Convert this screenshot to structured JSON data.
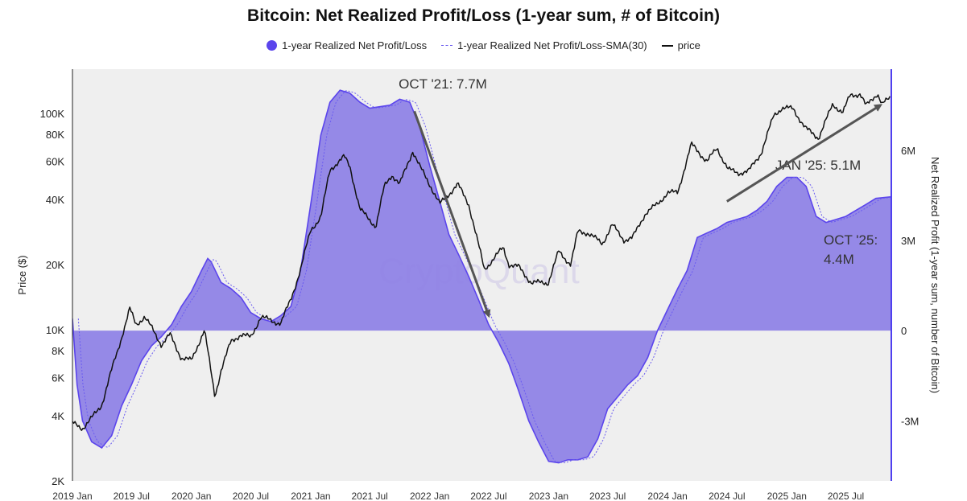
{
  "title": "Bitcoin: Net Realized Profit/Loss (1-year sum, # of Bitcoin)",
  "watermark": "CryptoQuant",
  "colors": {
    "area": "#5b45ec",
    "area_fill": "#8f83e6",
    "sma": "#6b5cf0",
    "price": "#111111",
    "plot_bg": "#efefef",
    "right_axis": "#4f3ff0"
  },
  "chart_data": {
    "type": "area",
    "title": "Bitcoin: Net Realized Profit/Loss (1-year sum, # of Bitcoin)",
    "legend_position": "top",
    "grid": false,
    "x_ticks": [
      "2019 Jan",
      "2019 Jul",
      "2020 Jan",
      "2020 Jul",
      "2021 Jan",
      "2021 Jul",
      "2022 Jan",
      "2022 Jul",
      "2023 Jan",
      "2023 Jul",
      "2024 Jan",
      "2024 Jul",
      "2025 Jan",
      "2025 Jul"
    ],
    "xlim": [
      "2019-01-01",
      "2025-11-15"
    ],
    "y_left": {
      "label": "Price ($)",
      "scale": "log",
      "ylim": [
        2000,
        160000
      ],
      "ticks": [
        2000,
        4000,
        6000,
        8000,
        10000,
        20000,
        40000,
        60000,
        80000,
        100000
      ],
      "tick_labels": [
        "2K",
        "4K",
        "6K",
        "8K",
        "10K",
        "20K",
        "40K",
        "60K",
        "80K",
        "100K"
      ]
    },
    "y_right": {
      "label": "Net Realized Profit (1-year sum, number of Bitcoin)",
      "ylim": [
        -5000000,
        8700000
      ],
      "ticks": [
        -3000000,
        0,
        3000000,
        6000000
      ],
      "tick_labels": [
        "-3M",
        "0",
        "3M",
        "6M"
      ]
    },
    "series": [
      {
        "name": "1-year Realized Net Profit/Loss",
        "axis": "right",
        "points": [
          [
            "2019-01-01",
            400000
          ],
          [
            "2019-01-15",
            -1800000
          ],
          [
            "2019-02-01",
            -3000000
          ],
          [
            "2019-03-01",
            -3700000
          ],
          [
            "2019-04-01",
            -3900000
          ],
          [
            "2019-05-01",
            -3500000
          ],
          [
            "2019-06-01",
            -2500000
          ],
          [
            "2019-07-01",
            -1800000
          ],
          [
            "2019-08-01",
            -1000000
          ],
          [
            "2019-09-01",
            -500000
          ],
          [
            "2019-10-01",
            -200000
          ],
          [
            "2019-11-01",
            200000
          ],
          [
            "2019-12-01",
            800000
          ],
          [
            "2020-01-01",
            1300000
          ],
          [
            "2020-02-01",
            2000000
          ],
          [
            "2020-02-20",
            2400000
          ],
          [
            "2020-03-01",
            2300000
          ],
          [
            "2020-04-01",
            1600000
          ],
          [
            "2020-05-01",
            1400000
          ],
          [
            "2020-06-01",
            1100000
          ],
          [
            "2020-07-01",
            600000
          ],
          [
            "2020-08-01",
            400000
          ],
          [
            "2020-09-01",
            300000
          ],
          [
            "2020-10-01",
            500000
          ],
          [
            "2020-11-01",
            800000
          ],
          [
            "2020-12-01",
            2000000
          ],
          [
            "2021-01-01",
            4200000
          ],
          [
            "2021-02-01",
            6500000
          ],
          [
            "2021-03-01",
            7600000
          ],
          [
            "2021-04-01",
            8000000
          ],
          [
            "2021-05-01",
            7900000
          ],
          [
            "2021-06-01",
            7600000
          ],
          [
            "2021-07-01",
            7400000
          ],
          [
            "2021-08-01",
            7450000
          ],
          [
            "2021-09-01",
            7500000
          ],
          [
            "2021-10-01",
            7700000
          ],
          [
            "2021-11-01",
            7600000
          ],
          [
            "2021-12-01",
            6800000
          ],
          [
            "2022-01-01",
            5500000
          ],
          [
            "2022-02-01",
            4300000
          ],
          [
            "2022-03-01",
            3200000
          ],
          [
            "2022-04-01",
            2500000
          ],
          [
            "2022-05-01",
            1800000
          ],
          [
            "2022-06-01",
            1000000
          ],
          [
            "2022-07-01",
            200000
          ],
          [
            "2022-08-01",
            -400000
          ],
          [
            "2022-09-01",
            -1100000
          ],
          [
            "2022-10-01",
            -2000000
          ],
          [
            "2022-11-01",
            -3000000
          ],
          [
            "2022-12-01",
            -3700000
          ],
          [
            "2023-01-01",
            -4350000
          ],
          [
            "2023-02-01",
            -4400000
          ],
          [
            "2023-03-01",
            -4300000
          ],
          [
            "2023-04-01",
            -4300000
          ],
          [
            "2023-05-01",
            -4200000
          ],
          [
            "2023-06-01",
            -3600000
          ],
          [
            "2023-07-01",
            -2600000
          ],
          [
            "2023-08-01",
            -2200000
          ],
          [
            "2023-09-01",
            -1800000
          ],
          [
            "2023-10-01",
            -1500000
          ],
          [
            "2023-11-01",
            -900000
          ],
          [
            "2023-12-01",
            0
          ],
          [
            "2024-01-01",
            700000
          ],
          [
            "2024-02-01",
            1400000
          ],
          [
            "2024-03-01",
            2000000
          ],
          [
            "2024-04-01",
            3100000
          ],
          [
            "2024-05-01",
            3250000
          ],
          [
            "2024-06-01",
            3400000
          ],
          [
            "2024-07-01",
            3600000
          ],
          [
            "2024-08-01",
            3700000
          ],
          [
            "2024-09-01",
            3800000
          ],
          [
            "2024-10-01",
            4000000
          ],
          [
            "2024-11-01",
            4300000
          ],
          [
            "2024-12-01",
            4800000
          ],
          [
            "2025-01-01",
            5100000
          ],
          [
            "2025-02-01",
            5100000
          ],
          [
            "2025-03-01",
            4800000
          ],
          [
            "2025-04-01",
            3800000
          ],
          [
            "2025-05-01",
            3600000
          ],
          [
            "2025-06-01",
            3700000
          ],
          [
            "2025-07-01",
            3800000
          ],
          [
            "2025-08-01",
            4000000
          ],
          [
            "2025-09-01",
            4200000
          ],
          [
            "2025-10-01",
            4400000
          ],
          [
            "2025-11-15",
            4450000
          ]
        ]
      },
      {
        "name": "1-year Realized Net Profit/Loss-SMA(30)",
        "axis": "right",
        "derived": "30-day moving average of the net realized profit/loss series"
      },
      {
        "name": "price",
        "axis": "left",
        "points": [
          [
            "2019-01-01",
            3700
          ],
          [
            "2019-02-01",
            3500
          ],
          [
            "2019-03-01",
            3900
          ],
          [
            "2019-04-01",
            4500
          ],
          [
            "2019-05-01",
            6500
          ],
          [
            "2019-05-25",
            8500
          ],
          [
            "2019-06-26",
            12500
          ],
          [
            "2019-07-15",
            10500
          ],
          [
            "2019-08-10",
            11500
          ],
          [
            "2019-09-01",
            10200
          ],
          [
            "2019-10-01",
            8500
          ],
          [
            "2019-10-27",
            9500
          ],
          [
            "2019-12-01",
            7400
          ],
          [
            "2020-01-01",
            7200
          ],
          [
            "2020-02-10",
            10000
          ],
          [
            "2020-03-13",
            4900
          ],
          [
            "2020-04-01",
            6500
          ],
          [
            "2020-05-01",
            8800
          ],
          [
            "2020-06-01",
            9500
          ],
          [
            "2020-07-01",
            9200
          ],
          [
            "2020-08-01",
            11500
          ],
          [
            "2020-09-01",
            11000
          ],
          [
            "2020-10-01",
            10700
          ],
          [
            "2020-11-01",
            13800
          ],
          [
            "2020-12-01",
            19000
          ],
          [
            "2021-01-01",
            29000
          ],
          [
            "2021-02-01",
            33000
          ],
          [
            "2021-03-01",
            55000
          ],
          [
            "2021-04-14",
            63000
          ],
          [
            "2021-05-01",
            57000
          ],
          [
            "2021-06-01",
            36000
          ],
          [
            "2021-07-20",
            30000
          ],
          [
            "2021-08-15",
            46000
          ],
          [
            "2021-09-07",
            52000
          ],
          [
            "2021-10-01",
            47000
          ],
          [
            "2021-11-10",
            67000
          ],
          [
            "2021-12-01",
            57000
          ],
          [
            "2022-01-01",
            47000
          ],
          [
            "2022-02-01",
            38000
          ],
          [
            "2022-03-28",
            47000
          ],
          [
            "2022-05-01",
            38000
          ],
          [
            "2022-06-18",
            19000
          ],
          [
            "2022-07-01",
            20000
          ],
          [
            "2022-08-15",
            24000
          ],
          [
            "2022-09-01",
            20000
          ],
          [
            "2022-10-01",
            19500
          ],
          [
            "2022-11-09",
            16500
          ],
          [
            "2022-12-31",
            16500
          ],
          [
            "2023-02-01",
            23000
          ],
          [
            "2023-03-10",
            20000
          ],
          [
            "2023-04-01",
            28500
          ],
          [
            "2023-05-01",
            28000
          ],
          [
            "2023-06-15",
            25000
          ],
          [
            "2023-07-15",
            30500
          ],
          [
            "2023-08-20",
            26000
          ],
          [
            "2023-09-15",
            26500
          ],
          [
            "2023-10-25",
            34500
          ],
          [
            "2023-12-01",
            38000
          ],
          [
            "2024-01-01",
            43000
          ],
          [
            "2024-02-01",
            43000
          ],
          [
            "2024-03-14",
            72000
          ],
          [
            "2024-05-01",
            60000
          ],
          [
            "2024-06-01",
            69000
          ],
          [
            "2024-07-05",
            55000
          ],
          [
            "2024-08-05",
            53000
          ],
          [
            "2024-09-06",
            54000
          ],
          [
            "2024-10-15",
            66000
          ],
          [
            "2024-11-22",
            98000
          ],
          [
            "2024-12-17",
            106000
          ],
          [
            "2025-01-20",
            105000
          ],
          [
            "2025-02-28",
            85000
          ],
          [
            "2025-04-08",
            77000
          ],
          [
            "2025-05-22",
            110000
          ],
          [
            "2025-06-22",
            101000
          ],
          [
            "2025-07-14",
            121000
          ],
          [
            "2025-08-14",
            123000
          ],
          [
            "2025-09-01",
            108000
          ],
          [
            "2025-10-06",
            124000
          ],
          [
            "2025-10-20",
            110000
          ],
          [
            "2025-11-15",
            118000
          ]
        ]
      }
    ],
    "annotations": [
      {
        "label": "OCT '21: 7.7M",
        "arrow_from": [
          "2021-11-15",
          7300000
        ],
        "arrow_to": [
          "2022-07-01",
          500000
        ]
      },
      {
        "label": "JAN '25: 5.1M",
        "arrow_from": [
          "2024-07-01",
          4300000
        ],
        "arrow_to": [
          "2025-10-15",
          7500000
        ]
      },
      {
        "label_lines": [
          "OCT '25:",
          "4.4M"
        ]
      }
    ]
  }
}
